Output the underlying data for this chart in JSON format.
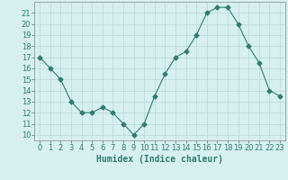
{
  "x": [
    0,
    1,
    2,
    3,
    4,
    5,
    6,
    7,
    8,
    9,
    10,
    11,
    12,
    13,
    14,
    15,
    16,
    17,
    18,
    19,
    20,
    21,
    22,
    23
  ],
  "y": [
    17,
    16,
    15,
    13,
    12,
    12,
    12.5,
    12,
    11,
    10,
    11,
    13.5,
    15.5,
    17,
    17.5,
    19,
    21,
    21.5,
    21.5,
    20,
    18,
    16.5,
    14,
    13.5
  ],
  "line_color": "#2e7d6e",
  "marker": "D",
  "markersize": 2.5,
  "linewidth": 0.8,
  "bg_color": "#d6efef",
  "grid_color": "#b8d8d8",
  "xlabel": "Humidex (Indice chaleur)",
  "xlabel_fontsize": 7,
  "tick_fontsize": 6,
  "ylim": [
    9.5,
    22
  ],
  "xlim": [
    -0.5,
    23.5
  ],
  "yticks": [
    10,
    11,
    12,
    13,
    14,
    15,
    16,
    17,
    18,
    19,
    20,
    21
  ],
  "xticks": [
    0,
    1,
    2,
    3,
    4,
    5,
    6,
    7,
    8,
    9,
    10,
    11,
    12,
    13,
    14,
    15,
    16,
    17,
    18,
    19,
    20,
    21,
    22,
    23
  ]
}
